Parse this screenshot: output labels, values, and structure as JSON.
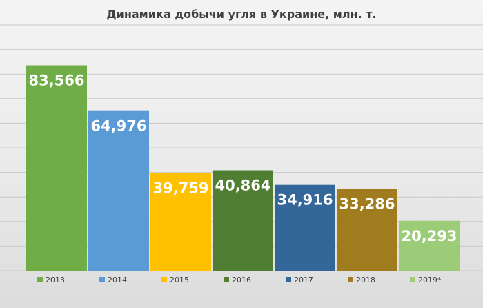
{
  "chart_data": {
    "type": "bar",
    "title": "Динамика добычи угля в Украине, млн. т.",
    "categories": [
      "2013",
      "2014",
      "2015",
      "2016",
      "2017",
      "2018",
      "2019*"
    ],
    "values": [
      83.566,
      64.976,
      39.759,
      40.864,
      34.916,
      33.286,
      20.293
    ],
    "value_labels": [
      "83,566",
      "64,976",
      "39,759",
      "40,864",
      "34,916",
      "33,286",
      "20,293"
    ],
    "colors": [
      "#70ad47",
      "#5b9bd5",
      "#ffc000",
      "#507e32",
      "#336699",
      "#a07c1e",
      "#9dcc78"
    ],
    "ylim": [
      0,
      100
    ],
    "grid": true,
    "legend": "bottom",
    "xlabel": "",
    "ylabel": ""
  }
}
